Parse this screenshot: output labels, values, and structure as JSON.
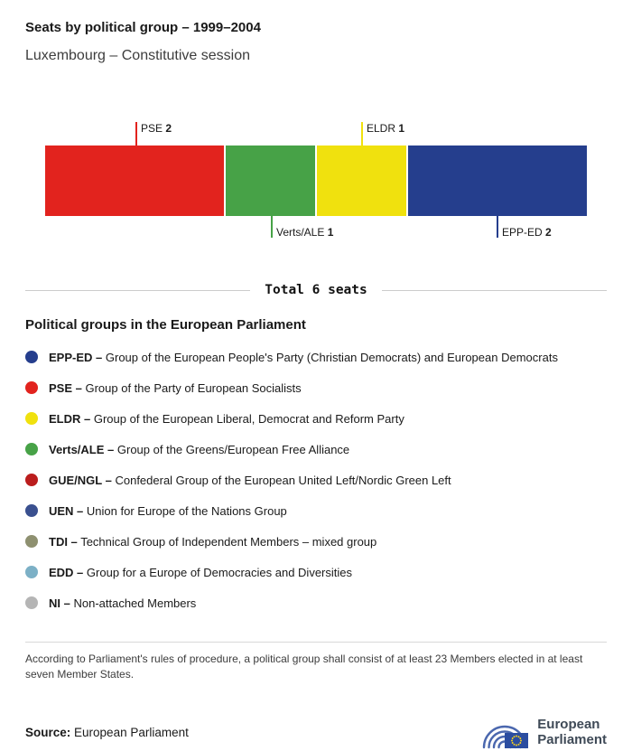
{
  "header": {
    "title": "Seats by political group – 1999–2004",
    "subtitle": "Luxembourg – Constitutive session"
  },
  "chart_data": {
    "type": "bar",
    "orientation": "horizontal-stacked",
    "title": "Seats by political group – 1999–2004",
    "subtitle": "Luxembourg – Constitutive session",
    "total_seats": 6,
    "total_label": "Total 6 seats",
    "categories": [
      "PSE",
      "Verts/ALE",
      "ELDR",
      "EPP-ED"
    ],
    "values": [
      2,
      1,
      1,
      2
    ],
    "segments": [
      {
        "group": "PSE",
        "seats": 2,
        "color": "#e2231e",
        "label_position": "top"
      },
      {
        "group": "Verts/ALE",
        "seats": 1,
        "color": "#47a247",
        "label_position": "bottom"
      },
      {
        "group": "ELDR",
        "seats": 1,
        "color": "#f0e10e",
        "label_position": "top"
      },
      {
        "group": "EPP-ED",
        "seats": 2,
        "color": "#253e8d",
        "label_position": "bottom"
      }
    ]
  },
  "legend": {
    "heading": "Political groups in the European Parliament",
    "items": [
      {
        "abbr": "EPP-ED –",
        "desc": "Group of the European People's Party (Christian Democrats) and European Democrats",
        "color": "#253e8d"
      },
      {
        "abbr": "PSE –",
        "desc": "Group of the Party of European Socialists",
        "color": "#e2231e"
      },
      {
        "abbr": "ELDR –",
        "desc": "Group of the European Liberal, Democrat and Reform Party",
        "color": "#f0e10e"
      },
      {
        "abbr": "Verts/ALE –",
        "desc": "Group of the Greens/European Free Alliance",
        "color": "#47a247"
      },
      {
        "abbr": "GUE/NGL –",
        "desc": "Confederal Group of the European United Left/Nordic Green Left",
        "color": "#bb1d1d"
      },
      {
        "abbr": "UEN –",
        "desc": "Union for Europe of the Nations Group",
        "color": "#3a508f"
      },
      {
        "abbr": "TDI –",
        "desc": "Technical Group of Independent Members – mixed group",
        "color": "#8e9070"
      },
      {
        "abbr": "EDD –",
        "desc": "Group for a Europe of Democracies and Diversities",
        "color": "#7cb0c6"
      },
      {
        "abbr": "NI –",
        "desc": "Non-attached Members",
        "color": "#b5b5b5"
      }
    ]
  },
  "footnote": "According to Parliament's rules of procedure, a political group shall consist of at least 23 Members elected in at least seven Member States.",
  "source": {
    "label": "Source:",
    "value": "European Parliament"
  },
  "logo": {
    "line1": "European",
    "line2": "Parliament"
  }
}
